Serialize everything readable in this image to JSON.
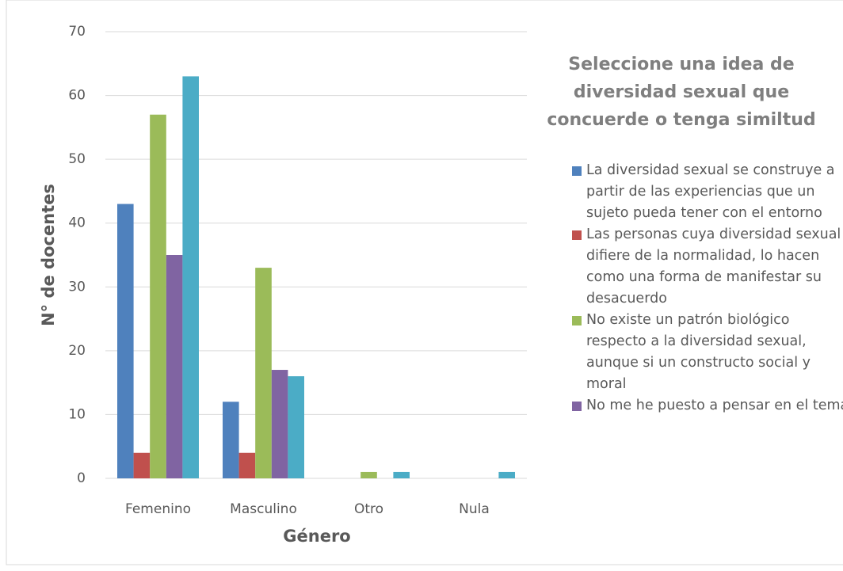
{
  "chart_data": {
    "type": "bar",
    "title": "Seleccione una idea de diversidad sexual que concuerde o tenga similtud",
    "x_label": "Género",
    "y_label": "N° de docentes",
    "categories": [
      "Femenino",
      "Masculino",
      "Otro",
      "Nula"
    ],
    "series": [
      {
        "name": "La diversidad sexual se construye a partir de las experiencias que un sujeto pueda tener con el entorno",
        "color": "#4f81bd",
        "values": [
          43,
          12,
          0,
          0
        ]
      },
      {
        "name": "Las personas cuya diversidad sexual difiere de la normalidad, lo hacen como una forma de manifestar su desacuerdo",
        "color": "#c0504d",
        "values": [
          4,
          4,
          0,
          0
        ]
      },
      {
        "name": "No existe un patrón biológico respecto a la diversidad sexual, aunque si un constructo social y moral",
        "color": "#9bbb59",
        "values": [
          57,
          33,
          1,
          0
        ]
      },
      {
        "name": "No me he puesto a pensar en el tema",
        "color": "#8064a2",
        "values": [
          35,
          17,
          0,
          0
        ]
      },
      {
        "color": "#4bacc6",
        "values": [
          63,
          16,
          1,
          1
        ]
      }
    ],
    "ylim": [
      0,
      70
    ],
    "yticks": [
      0,
      10,
      20,
      30,
      40,
      50,
      60,
      70
    ],
    "grid": true,
    "legend": "right"
  }
}
